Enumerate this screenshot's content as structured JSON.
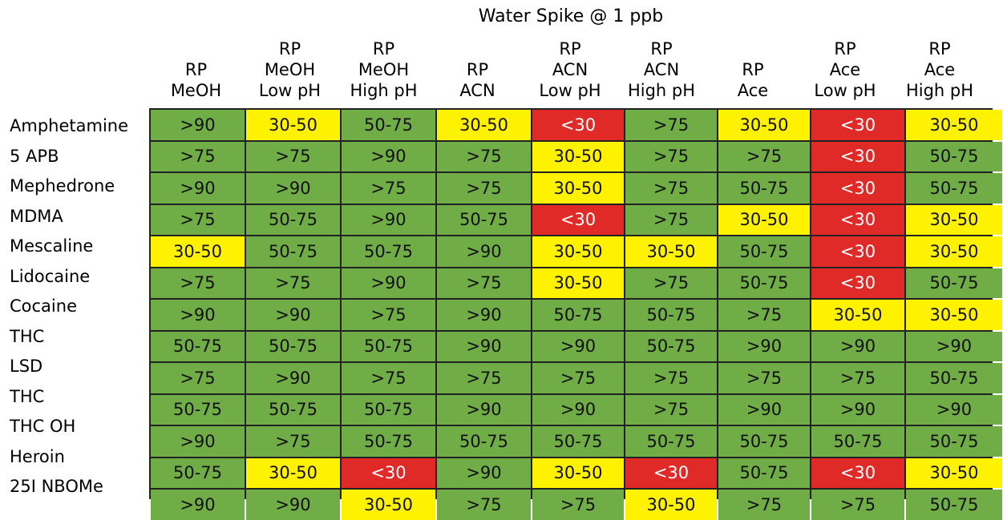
{
  "chart_data": {
    "type": "table",
    "title": "Water Spike @ 1 ppb",
    "columns": [
      [
        "RP",
        "MeOH"
      ],
      [
        "RP",
        "MeOH",
        "Low pH"
      ],
      [
        "RP",
        "MeOH",
        "High pH"
      ],
      [
        "RP",
        "ACN"
      ],
      [
        "RP",
        "ACN",
        "Low pH"
      ],
      [
        "RP",
        "ACN",
        "High pH"
      ],
      [
        "RP",
        "Ace"
      ],
      [
        "RP",
        "Ace",
        "Low pH"
      ],
      [
        "RP",
        "Ace",
        "High pH"
      ]
    ],
    "rows": [
      {
        "label": "Amphetamine",
        "values": [
          ">90",
          "30-50",
          "50-75",
          "30-50",
          "<30",
          ">75",
          "30-50",
          "<30",
          "30-50"
        ]
      },
      {
        "label": "5 APB",
        "values": [
          ">75",
          ">75",
          ">90",
          ">75",
          "30-50",
          ">75",
          ">75",
          "<30",
          "50-75"
        ]
      },
      {
        "label": "Mephedrone",
        "values": [
          ">90",
          ">90",
          ">75",
          ">75",
          "30-50",
          ">75",
          "50-75",
          "<30",
          "50-75"
        ]
      },
      {
        "label": "MDMA",
        "values": [
          ">75",
          "50-75",
          ">90",
          "50-75",
          "<30",
          ">75",
          "30-50",
          "<30",
          "30-50"
        ]
      },
      {
        "label": "Mescaline",
        "values": [
          "30-50",
          "50-75",
          "50-75",
          ">90",
          "30-50",
          "30-50",
          "50-75",
          "<30",
          "30-50"
        ]
      },
      {
        "label": "Lidocaine",
        "values": [
          ">75",
          ">75",
          ">90",
          ">75",
          "30-50",
          ">75",
          "50-75",
          "<30",
          "50-75"
        ]
      },
      {
        "label": "Cocaine",
        "values": [
          ">90",
          ">90",
          ">75",
          ">90",
          "50-75",
          "50-75",
          ">75",
          "30-50",
          "30-50"
        ]
      },
      {
        "label": "THC",
        "values": [
          "50-75",
          "50-75",
          "50-75",
          ">90",
          ">90",
          "50-75",
          ">90",
          ">90",
          ">90"
        ]
      },
      {
        "label": "LSD",
        "values": [
          ">75",
          ">90",
          ">75",
          ">75",
          ">75",
          ">75",
          ">75",
          ">75",
          "50-75"
        ]
      },
      {
        "label": "THC",
        "values": [
          "50-75",
          "50-75",
          "50-75",
          ">90",
          ">90",
          ">75",
          ">90",
          ">90",
          ">90"
        ]
      },
      {
        "label": "THC OH",
        "values": [
          ">90",
          ">75",
          "50-75",
          "50-75",
          "50-75",
          "50-75",
          "50-75",
          "50-75",
          "50-75"
        ]
      },
      {
        "label": "Heroin",
        "values": [
          "50-75",
          "30-50",
          "<30",
          ">90",
          "30-50",
          "<30",
          "50-75",
          "<30",
          "30-50"
        ]
      },
      {
        "label": "25I NBOMe",
        "values": [
          ">90",
          ">90",
          "30-50",
          ">75",
          ">75",
          "30-50",
          ">75",
          ">75",
          "50-75"
        ]
      }
    ],
    "color_scale": {
      "<30": "#e02a27",
      "30-50": "#fff200",
      "50-75": "#70ad47",
      ">75": "#70ad47",
      ">90": "#70ad47"
    }
  }
}
